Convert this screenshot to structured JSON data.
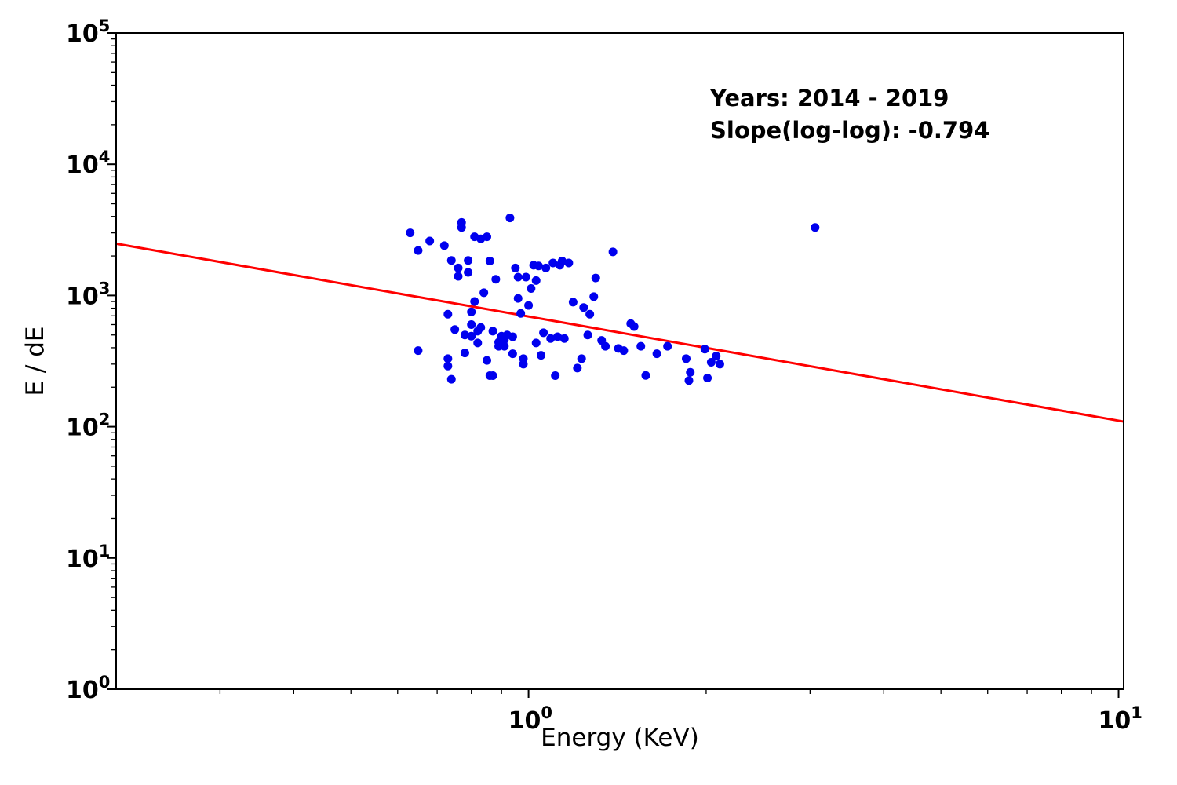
{
  "annotation": {
    "line1": "Years: 2014 - 2019",
    "line2": "Slope(log-log): -0.794"
  },
  "chart_data": {
    "type": "scatter",
    "title": "",
    "xlabel": "Energy (KeV)",
    "ylabel": "E / dE",
    "xscale": "log",
    "yscale": "log",
    "xlim": [
      0.2,
      10.2
    ],
    "ylim": [
      1,
      100000
    ],
    "x_tick_exponents": [
      0,
      1
    ],
    "y_tick_exponents": [
      0,
      1,
      2,
      3,
      4,
      5
    ],
    "grid": false,
    "point_color": "#0000ee",
    "marker_radius": 5.5,
    "fit_line": {
      "slope": -0.794,
      "log10_intercept_at_x1": 2.84,
      "color": "#ff0000",
      "width": 3
    },
    "points": [
      [
        0.63,
        3000
      ],
      [
        0.65,
        2200
      ],
      [
        0.68,
        2600
      ],
      [
        0.65,
        380
      ],
      [
        0.72,
        2400
      ],
      [
        0.73,
        720
      ],
      [
        0.73,
        330
      ],
      [
        0.73,
        290
      ],
      [
        0.74,
        230
      ],
      [
        0.74,
        1850
      ],
      [
        0.75,
        550
      ],
      [
        0.76,
        1620
      ],
      [
        0.76,
        1400
      ],
      [
        0.77,
        3300
      ],
      [
        0.77,
        3600
      ],
      [
        0.78,
        500
      ],
      [
        0.78,
        365
      ],
      [
        0.79,
        1500
      ],
      [
        0.79,
        1850
      ],
      [
        0.8,
        490
      ],
      [
        0.8,
        600
      ],
      [
        0.8,
        750
      ],
      [
        0.81,
        2800
      ],
      [
        0.81,
        900
      ],
      [
        0.82,
        435
      ],
      [
        0.82,
        535
      ],
      [
        0.83,
        2700
      ],
      [
        0.83,
        570
      ],
      [
        0.84,
        1050
      ],
      [
        0.85,
        320
      ],
      [
        0.85,
        2800
      ],
      [
        0.86,
        1830
      ],
      [
        0.86,
        245
      ],
      [
        0.87,
        535
      ],
      [
        0.87,
        245
      ],
      [
        0.88,
        1330
      ],
      [
        0.89,
        410
      ],
      [
        0.89,
        440
      ],
      [
        0.9,
        490
      ],
      [
        0.91,
        460
      ],
      [
        0.91,
        410
      ],
      [
        0.92,
        500
      ],
      [
        0.93,
        3900
      ],
      [
        0.94,
        485
      ],
      [
        0.94,
        360
      ],
      [
        0.95,
        1620
      ],
      [
        0.96,
        1380
      ],
      [
        0.96,
        950
      ],
      [
        0.97,
        730
      ],
      [
        0.98,
        330
      ],
      [
        0.98,
        300
      ],
      [
        0.99,
        1380
      ],
      [
        1.0,
        840
      ],
      [
        1.01,
        1130
      ],
      [
        1.02,
        1700
      ],
      [
        1.03,
        435
      ],
      [
        1.03,
        1300
      ],
      [
        1.04,
        1680
      ],
      [
        1.05,
        350
      ],
      [
        1.06,
        520
      ],
      [
        1.07,
        1620
      ],
      [
        1.09,
        470
      ],
      [
        1.1,
        1770
      ],
      [
        1.11,
        245
      ],
      [
        1.12,
        485
      ],
      [
        1.13,
        1700
      ],
      [
        1.14,
        1830
      ],
      [
        1.15,
        470
      ],
      [
        1.17,
        1770
      ],
      [
        1.19,
        890
      ],
      [
        1.21,
        280
      ],
      [
        1.23,
        330
      ],
      [
        1.24,
        810
      ],
      [
        1.26,
        500
      ],
      [
        1.27,
        720
      ],
      [
        1.29,
        980
      ],
      [
        1.3,
        1360
      ],
      [
        1.33,
        455
      ],
      [
        1.35,
        410
      ],
      [
        1.39,
        2150
      ],
      [
        1.42,
        395
      ],
      [
        1.45,
        380
      ],
      [
        1.49,
        610
      ],
      [
        1.51,
        580
      ],
      [
        1.55,
        410
      ],
      [
        1.58,
        246
      ],
      [
        1.65,
        360
      ],
      [
        1.72,
        410
      ],
      [
        1.85,
        330
      ],
      [
        1.87,
        225
      ],
      [
        1.88,
        260
      ],
      [
        1.99,
        390
      ],
      [
        2.01,
        235
      ],
      [
        2.04,
        310
      ],
      [
        2.08,
        345
      ],
      [
        2.11,
        300
      ],
      [
        3.06,
        3300
      ]
    ]
  }
}
